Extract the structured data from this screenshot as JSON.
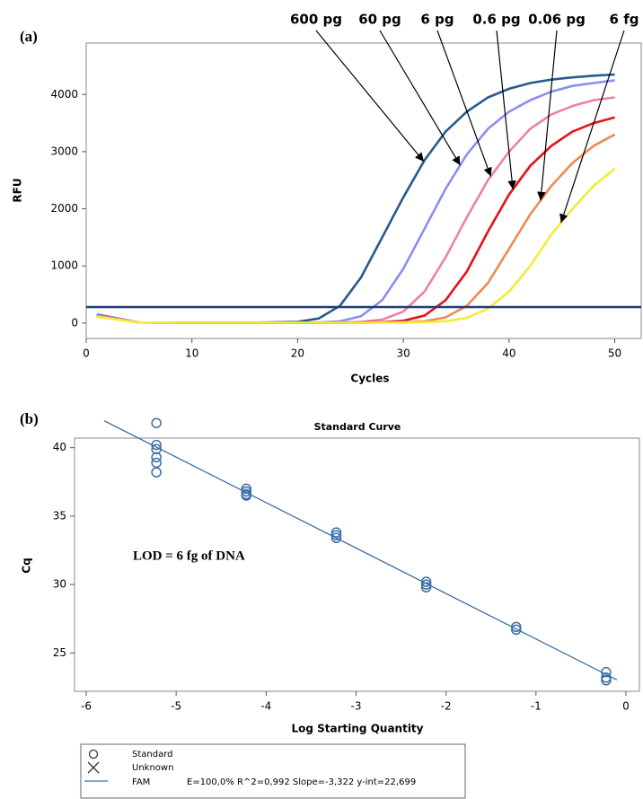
{
  "chart_data": [
    {
      "type": "line",
      "panel_label": "(a)",
      "xlabel": "Cycles",
      "ylabel": "RFU",
      "x": [
        1,
        5,
        10,
        15,
        20,
        22,
        24,
        26,
        28,
        30,
        32,
        34,
        36,
        38,
        40,
        42,
        44,
        46,
        48,
        50
      ],
      "series": [
        {
          "name": "600 pg",
          "color": "#2a5a8c",
          "values": [
            150,
            10,
            5,
            5,
            20,
            80,
            300,
            800,
            1500,
            2200,
            2850,
            3350,
            3700,
            3950,
            4100,
            4200,
            4260,
            4300,
            4330,
            4350
          ]
        },
        {
          "name": "60 pg",
          "color": "#8a8ef0",
          "values": [
            140,
            10,
            5,
            5,
            5,
            10,
            30,
            120,
            400,
            950,
            1650,
            2350,
            2950,
            3400,
            3700,
            3900,
            4050,
            4150,
            4200,
            4250
          ]
        },
        {
          "name": "6 pg",
          "color": "#f07fa8",
          "values": [
            130,
            10,
            5,
            5,
            5,
            5,
            10,
            20,
            60,
            200,
            550,
            1150,
            1850,
            2500,
            3000,
            3400,
            3650,
            3800,
            3900,
            3950
          ]
        },
        {
          "name": "0.6 pg",
          "color": "#e8101a",
          "values": [
            120,
            10,
            5,
            5,
            5,
            5,
            5,
            10,
            15,
            40,
            130,
            400,
            900,
            1600,
            2250,
            2750,
            3100,
            3350,
            3500,
            3600
          ]
        },
        {
          "name": "0.06 pg",
          "color": "#f08a50",
          "values": [
            120,
            10,
            5,
            5,
            5,
            5,
            5,
            5,
            10,
            15,
            30,
            100,
            300,
            700,
            1300,
            1900,
            2400,
            2800,
            3100,
            3300
          ]
        },
        {
          "name": "6 fg",
          "color": "#f2ec3a",
          "values": [
            110,
            10,
            5,
            5,
            5,
            5,
            5,
            5,
            5,
            10,
            15,
            30,
            90,
            250,
            550,
            1000,
            1550,
            2000,
            2400,
            2700
          ]
        }
      ],
      "threshold": 280,
      "threshold_color": "#1f3d7a",
      "xlim": [
        0,
        52.5
      ],
      "ylim": [
        -270,
        4900
      ],
      "xticks": [
        0,
        10,
        20,
        30,
        40,
        50
      ],
      "yticks": [
        0,
        1000,
        2000,
        3000,
        4000
      ]
    },
    {
      "type": "scatter",
      "panel_label": "(b)",
      "title": "Standard Curve",
      "xlabel": "Log Starting Quantity",
      "ylabel": "Cq",
      "annotation": "LOD = 6 fg of DNA",
      "series": [
        {
          "name": "Standard",
          "color": "#3b6ea8",
          "x": [
            -5.22,
            -5.22,
            -5.22,
            -5.22,
            -5.22,
            -5.22,
            -4.22,
            -4.22,
            -4.22,
            -4.22,
            -3.22,
            -3.22,
            -3.22,
            -2.22,
            -2.22,
            -2.22,
            -1.22,
            -1.22,
            -0.22,
            -0.22,
            -0.22
          ],
          "values": [
            41.8,
            40.2,
            39.9,
            39.3,
            38.9,
            38.2,
            37.0,
            36.8,
            36.6,
            36.5,
            33.8,
            33.6,
            33.4,
            30.2,
            30.0,
            29.8,
            26.9,
            26.7,
            23.6,
            23.2,
            23.0
          ]
        },
        {
          "name": "Unknown",
          "color": "#333333",
          "x": [],
          "values": []
        }
      ],
      "fit": {
        "name": "FAM",
        "stats": "E=100,0% R^2=0,992 Slope=-3,322 y-int=22,699",
        "slope": -3.322,
        "intercept": 22.699,
        "x": [
          -5.8,
          -0.1
        ],
        "color": "#3b6ea8"
      },
      "xlim": [
        -6.13,
        0.15
      ],
      "ylim": [
        22.2,
        40.7
      ],
      "xticks": [
        -6,
        -5,
        -4,
        -3,
        -2,
        -1,
        0
      ],
      "yticks": [
        25,
        30,
        35,
        40
      ]
    }
  ]
}
